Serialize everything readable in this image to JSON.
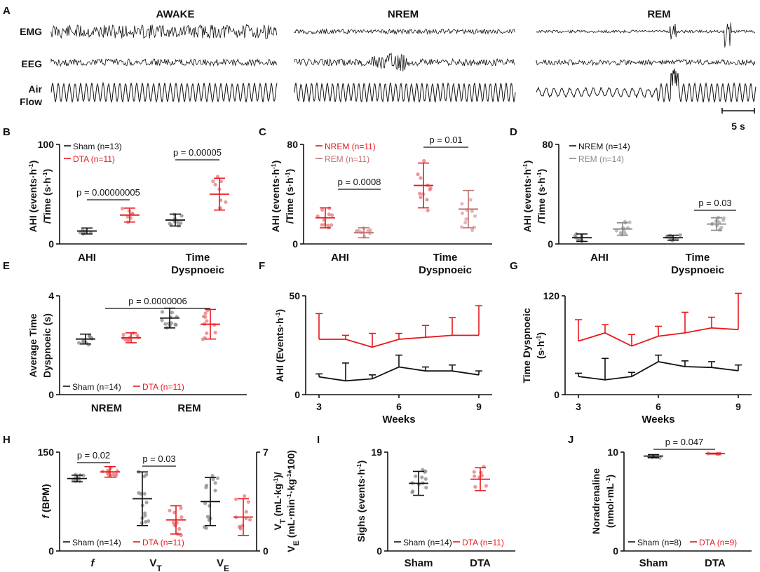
{
  "figure": {
    "panel_letters": [
      "A",
      "B",
      "C",
      "D",
      "E",
      "F",
      "G",
      "H",
      "I",
      "J"
    ],
    "colors": {
      "black": "#111111",
      "red": "#e8191c",
      "grey": "#888888",
      "lightred": "#e8747a",
      "mauve": "#c07070"
    }
  },
  "panelA": {
    "states": [
      "AWAKE",
      "NREM",
      "REM"
    ],
    "channels": [
      "EMG",
      "EEG",
      "Air",
      "Flow"
    ],
    "scale_bar": "5 s"
  },
  "chart_data": [
    {
      "id": "B",
      "type": "scatter",
      "title": "",
      "ylabel": [
        "AHI (events·h",
        "-1",
        ")",
        "/Time (s·h",
        "-1",
        ")"
      ],
      "ylim": [
        0,
        100
      ],
      "yticks": [
        0,
        100
      ],
      "categories": [
        "AHI",
        "Time",
        "Dyspnoeic"
      ],
      "series": [
        {
          "name": "Sham (n=13)",
          "color": "#111111",
          "points": [
            {
              "x": 0,
              "mean": 13,
              "sd": 3,
              "n": 6
            },
            {
              "x": 1,
              "mean": 24,
              "sd": 6,
              "n": 9
            }
          ]
        },
        {
          "name": "DTA (n=11)",
          "color": "#e8191c",
          "points": [
            {
              "x": 0,
              "mean": 29,
              "sd": 7,
              "n": 7
            },
            {
              "x": 1,
              "mean": 50,
              "sd": 16,
              "n": 9
            }
          ]
        }
      ],
      "annotations": [
        "p = 0.00000005",
        "p = 0.00005"
      ]
    },
    {
      "id": "C",
      "type": "scatter",
      "ylabel": [
        "AHI (events·h",
        "-1",
        ")",
        "/Time (s·h",
        "-1",
        ")"
      ],
      "ylim": [
        0,
        80
      ],
      "yticks": [
        0,
        80
      ],
      "categories": [
        "AHI",
        "Time",
        "Dyspnoeic"
      ],
      "series": [
        {
          "name": "NREM (n=11)",
          "color": "#e8191c",
          "points": [
            {
              "x": 0,
              "mean": 21,
              "sd": 8,
              "n": 11
            },
            {
              "x": 1,
              "mean": 47,
              "sd": 18,
              "n": 11
            }
          ]
        },
        {
          "name": "REM (n=11)",
          "color": "#c07070",
          "points": [
            {
              "x": 0,
              "mean": 9,
              "sd": 4,
              "n": 11
            },
            {
              "x": 1,
              "mean": 28,
              "sd": 15,
              "n": 11
            }
          ]
        }
      ],
      "annotations": [
        "p = 0.0008",
        "p = 0.01"
      ]
    },
    {
      "id": "D",
      "type": "scatter",
      "ylabel": [
        "AHI (events·h",
        "-1",
        ")",
        "/Time (s·h",
        "-1",
        ")"
      ],
      "ylim": [
        0,
        80
      ],
      "yticks": [
        0,
        80
      ],
      "categories": [
        "AHI",
        "Time",
        "Dyspnoeic"
      ],
      "series": [
        {
          "name": "NREM (n=14)",
          "color": "#111111",
          "points": [
            {
              "x": 0,
              "mean": 5,
              "sd": 3,
              "n": 9
            },
            {
              "x": 1,
              "mean": 5,
              "sd": 2,
              "n": 9
            }
          ]
        },
        {
          "name": "REM (n=14)",
          "color": "#888888",
          "points": [
            {
              "x": 0,
              "mean": 12,
              "sd": 5,
              "n": 12
            },
            {
              "x": 1,
              "mean": 16,
              "sd": 5,
              "n": 12
            }
          ]
        }
      ],
      "annotations": [
        "p = 0.03"
      ]
    },
    {
      "id": "E",
      "type": "scatter",
      "ylabel": [
        "Average Time",
        "Dyspnoeic (s)"
      ],
      "ylim": [
        0,
        4
      ],
      "yticks": [
        0,
        4
      ],
      "categories": [
        "NREM",
        "REM"
      ],
      "series": [
        {
          "name": "Sham (n=14)",
          "color": "#111111",
          "points": [
            {
              "x": 0,
              "mean": 2.25,
              "sd": 0.2,
              "n": 9
            },
            {
              "x": 1,
              "mean": 3.1,
              "sd": 0.4,
              "n": 12
            }
          ]
        },
        {
          "name": "DTA (n=11)",
          "color": "#e8191c",
          "points": [
            {
              "x": 0,
              "mean": 2.3,
              "sd": 0.2,
              "n": 9
            },
            {
              "x": 1,
              "mean": 2.85,
              "sd": 0.6,
              "n": 11
            }
          ]
        }
      ],
      "annotations": [
        "p = 0.0000006"
      ]
    },
    {
      "id": "F",
      "type": "line",
      "ylabel": [
        "AHI (Events·h",
        "-1",
        ")"
      ],
      "xlabel": "Weeks",
      "xlim": [
        2.5,
        9.5
      ],
      "xticks": [
        3,
        6,
        9
      ],
      "ylim": [
        0,
        50
      ],
      "yticks": [
        0,
        50
      ],
      "series": [
        {
          "name": "Sham",
          "color": "#111111",
          "x": [
            3,
            4,
            5,
            6,
            7,
            8,
            9
          ],
          "y": [
            9,
            7,
            8,
            14,
            12,
            12,
            10
          ],
          "err": [
            1.5,
            9,
            2,
            6,
            2,
            3,
            2
          ]
        },
        {
          "name": "DTA",
          "color": "#e8191c",
          "x": [
            3,
            4,
            5,
            6,
            7,
            8,
            9
          ],
          "y": [
            28,
            28,
            24,
            28,
            29,
            30,
            30
          ],
          "err": [
            13,
            2,
            7,
            3,
            6,
            9,
            15
          ]
        }
      ]
    },
    {
      "id": "G",
      "type": "line",
      "ylabel": [
        "Time Dyspnoeic",
        "(s·h",
        "-1",
        ")"
      ],
      "xlabel": "Weeks",
      "xlim": [
        2.5,
        9.5
      ],
      "xticks": [
        3,
        6,
        9
      ],
      "ylim": [
        0,
        120
      ],
      "yticks": [
        0,
        120
      ],
      "series": [
        {
          "name": "Sham",
          "color": "#111111",
          "x": [
            3,
            4,
            5,
            6,
            7,
            8,
            9
          ],
          "y": [
            22,
            18,
            22,
            40,
            34,
            33,
            29
          ],
          "err": [
            4,
            26,
            5,
            8,
            7,
            7,
            7
          ]
        },
        {
          "name": "DTA",
          "color": "#e8191c",
          "x": [
            3,
            4,
            5,
            6,
            7,
            8,
            9
          ],
          "y": [
            65,
            75,
            59,
            71,
            75,
            81,
            79
          ],
          "err": [
            26,
            10,
            14,
            12,
            25,
            13,
            44
          ]
        }
      ]
    },
    {
      "id": "H",
      "type": "scatter",
      "ylabel": [
        "f",
        "(BPM)"
      ],
      "ylim": [
        0,
        150
      ],
      "yticks": [
        0,
        150
      ],
      "y2label": [
        "V",
        "T",
        "(mL·kg",
        "-1",
        ")/",
        "V",
        "E",
        "(mL·min",
        "-1",
        "·kg",
        "-1",
        "*100)"
      ],
      "y2lim": [
        0,
        7
      ],
      "y2ticks": [
        0,
        7
      ],
      "categories": [
        "f",
        "V",
        "T",
        "V",
        "E"
      ],
      "series": [
        {
          "name": "Sham (n=14)",
          "color": "#111111",
          "points": [
            {
              "x": 0,
              "mean": 110,
              "sd": 5,
              "n": 9
            },
            {
              "x": 1,
              "mean": 3.7,
              "sd": 1.9,
              "n": 14,
              "axis": "y2"
            },
            {
              "x": 2,
              "mean": 3.5,
              "sd": 1.7,
              "n": 14,
              "axis": "y2"
            }
          ]
        },
        {
          "name": "DTA (n=11)",
          "color": "#e8191c",
          "points": [
            {
              "x": 0,
              "mean": 120,
              "sd": 8,
              "n": 11
            },
            {
              "x": 1,
              "mean": 2.2,
              "sd": 1.0,
              "n": 11,
              "axis": "y2"
            },
            {
              "x": 2,
              "mean": 2.4,
              "sd": 1.3,
              "n": 11,
              "axis": "y2"
            }
          ]
        }
      ],
      "annotations": [
        "p = 0.02",
        "p = 0.03"
      ]
    },
    {
      "id": "I",
      "type": "scatter",
      "ylabel": [
        "Sighs (events·h",
        "-1",
        ")"
      ],
      "ylim": [
        0,
        19
      ],
      "yticks": [
        0,
        19
      ],
      "categories": [
        "Sham",
        "DTA"
      ],
      "series": [
        {
          "name": "Sham (n=14)",
          "color": "#111111",
          "points": [
            {
              "x": 0,
              "mean": 13,
              "sd": 2.3,
              "n": 12
            }
          ]
        },
        {
          "name": "DTA (n=11)",
          "color": "#e8191c",
          "points": [
            {
              "x": 1,
              "mean": 13.8,
              "sd": 2.2,
              "n": 8
            }
          ]
        }
      ]
    },
    {
      "id": "J",
      "type": "scatter",
      "ylabel": [
        "Noradrenaline",
        "(nmol·mL",
        "-1",
        ")"
      ],
      "ylim": [
        0,
        10
      ],
      "yticks": [
        0,
        10
      ],
      "categories": [
        "Sham",
        "DTA"
      ],
      "series": [
        {
          "name": "Sham (n=8)",
          "color": "#111111",
          "points": [
            {
              "x": 0,
              "mean": 9.6,
              "sd": 0.15,
              "n": 6
            }
          ]
        },
        {
          "name": "DTA (n=9)",
          "color": "#e8191c",
          "points": [
            {
              "x": 1,
              "mean": 9.85,
              "sd": 0.04,
              "n": 6
            }
          ]
        }
      ],
      "annotations": [
        "p = 0.047"
      ]
    }
  ]
}
